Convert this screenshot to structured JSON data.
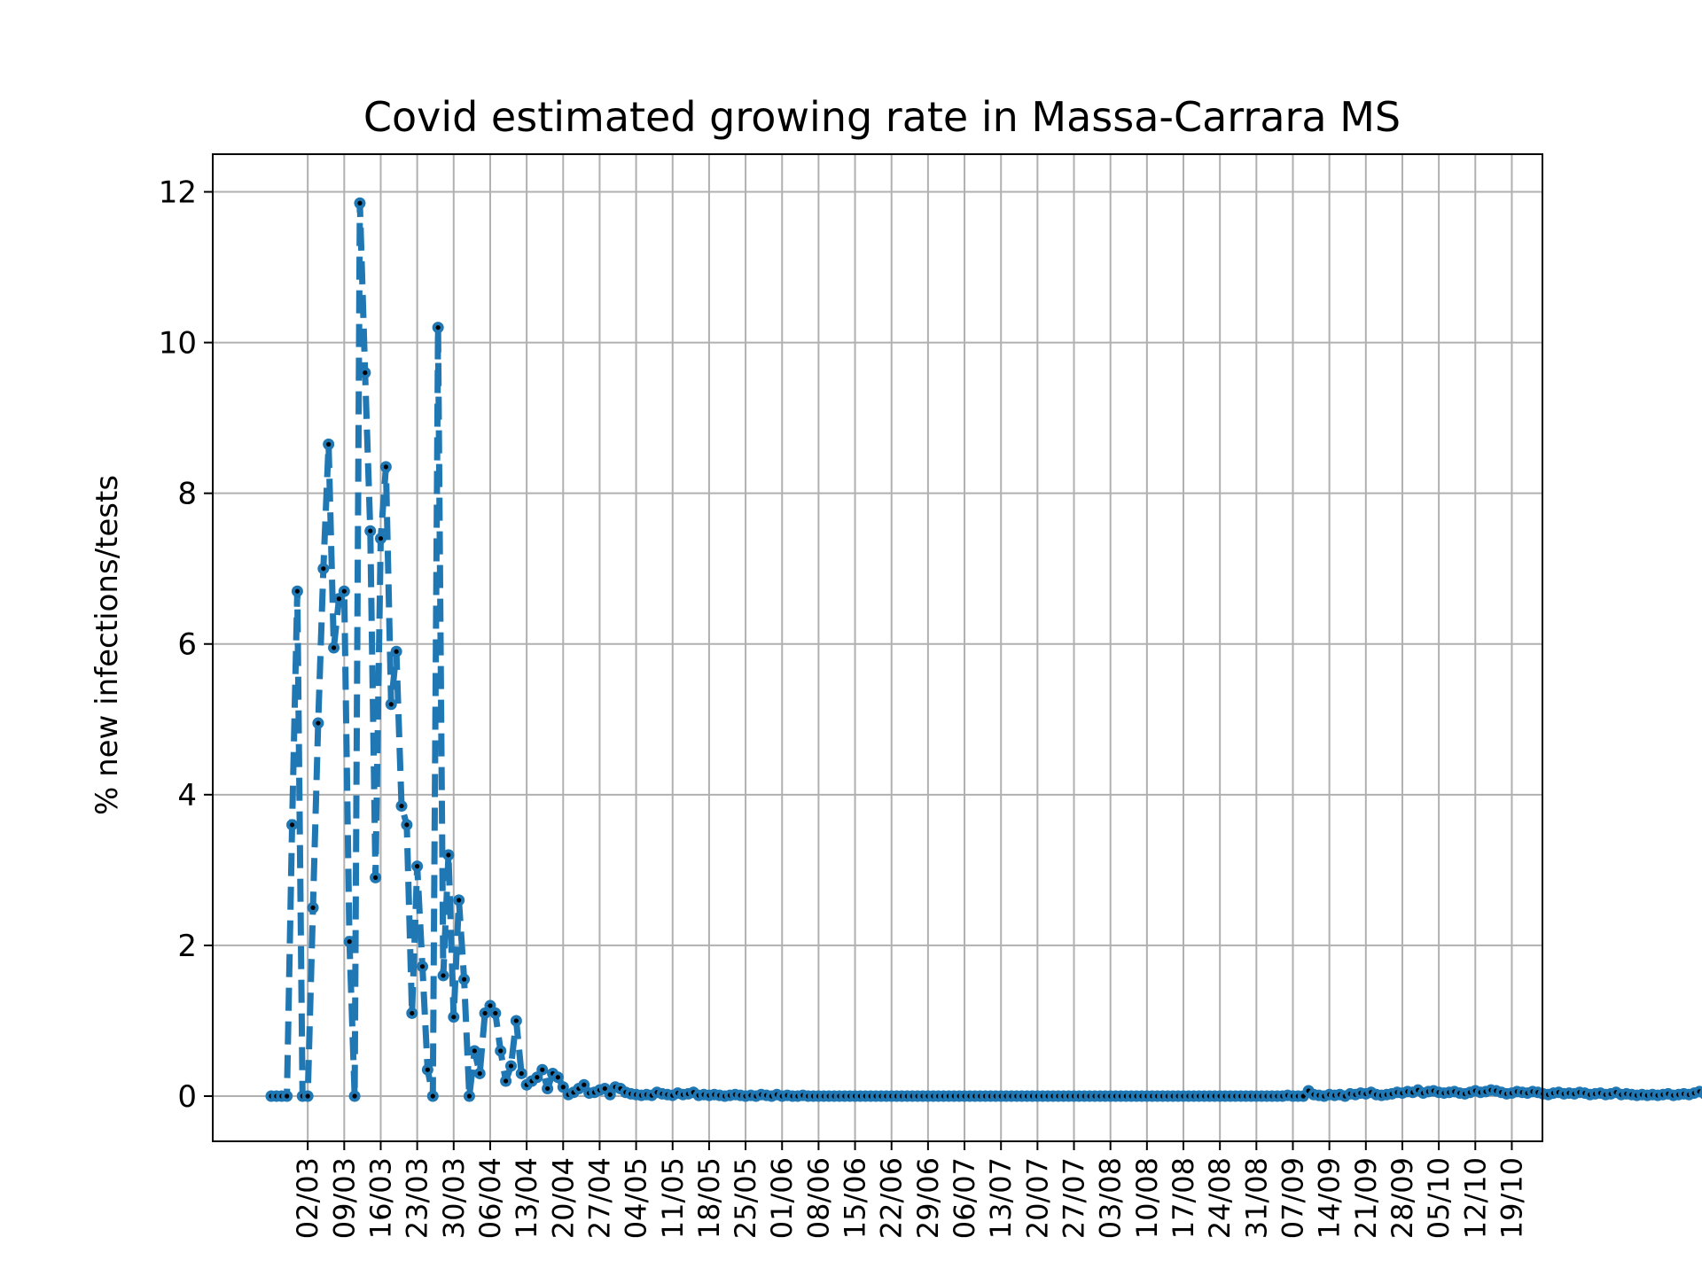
{
  "chart_data": {
    "type": "line",
    "title": "Covid estimated growing rate in Massa-Carrara MS",
    "xlabel": "",
    "ylabel": "% new infections/tests",
    "ylim": [
      -0.6,
      12.5
    ],
    "yticks": [
      0,
      2,
      4,
      6,
      8,
      10,
      12
    ],
    "grid": true,
    "line_color": "#1f77b4",
    "marker_color": "#000000",
    "x_start": "24/02",
    "x_end": "19/10",
    "xtick_labels": [
      "02/03",
      "09/03",
      "16/03",
      "23/03",
      "30/03",
      "06/04",
      "13/04",
      "20/04",
      "27/04",
      "04/05",
      "11/05",
      "18/05",
      "25/05",
      "01/06",
      "08/06",
      "15/06",
      "22/06",
      "29/06",
      "06/07",
      "13/07",
      "20/07",
      "27/07",
      "03/08",
      "10/08",
      "17/08",
      "24/08",
      "31/08",
      "07/09",
      "14/09",
      "21/09",
      "28/09",
      "05/10",
      "12/10",
      "19/10"
    ],
    "series": [
      {
        "values": [
          0,
          0,
          0,
          0,
          3.6,
          6.7,
          0,
          0,
          2.5,
          4.95,
          7.0,
          8.65,
          5.95,
          6.6,
          6.7,
          2.05,
          0,
          11.85,
          9.6,
          7.5,
          2.9,
          7.4,
          8.35,
          5.2,
          5.9,
          3.85,
          3.6,
          1.1,
          3.05,
          1.72,
          0.35,
          0,
          10.2,
          1.6,
          3.2,
          1.05,
          2.6,
          1.55,
          0,
          0.6,
          0.3,
          1.1,
          1.2,
          1.1,
          0.6,
          0.2,
          0.4,
          1.0,
          0.3,
          0.15,
          0.2,
          0.25,
          0.35,
          0.1,
          0.3,
          0.25,
          0.12,
          0.02,
          0.05,
          0.1,
          0.15,
          0.04,
          0.05,
          0.08,
          0.1,
          0.02,
          0.12,
          0.1,
          0.05,
          0.03,
          0.02,
          0.01,
          0.02,
          0.01,
          0.05,
          0.03,
          0.02,
          0.01,
          0.04,
          0.02,
          0.03,
          0.05,
          0.01,
          0.02,
          0.01,
          0.02,
          0.01,
          0.0,
          0.01,
          0.02,
          0.01,
          0.0,
          0.01,
          0.0,
          0.02,
          0.01,
          0.0,
          0.02,
          0.0,
          0.01,
          0.0,
          0.0,
          0.01,
          0.0,
          0.0,
          0.0,
          0.0,
          0.0,
          0.0,
          0.0,
          0.0,
          0.0,
          0.0,
          0.0,
          0.0,
          0.0,
          0.0,
          0.0,
          0.0,
          0.0,
          0.0,
          0.0,
          0.0,
          0.0,
          0.0,
          0.0,
          0.0,
          0.0,
          0.0,
          0.0,
          0.0,
          0.0,
          0.0,
          0.0,
          0.0,
          0.0,
          0.0,
          0.0,
          0.0,
          0.0,
          0.0,
          0.0,
          0.0,
          0.0,
          0.0,
          0.0,
          0.0,
          0.0,
          0.0,
          0.0,
          0.0,
          0.0,
          0.0,
          0.0,
          0.0,
          0.0,
          0.0,
          0.0,
          0.0,
          0.0,
          0.0,
          0.0,
          0.0,
          0.0,
          0.0,
          0.0,
          0.0,
          0.0,
          0.0,
          0.0,
          0.0,
          0.0,
          0.0,
          0.0,
          0.0,
          0.0,
          0.0,
          0.0,
          0.0,
          0.0,
          0.0,
          0.0,
          0.0,
          0.0,
          0.0,
          0.0,
          0.0,
          0.0,
          0.0,
          0.0,
          0.0,
          0.0,
          0.0,
          0.0,
          0.0,
          0.01,
          0.0,
          0.0,
          0.0,
          0.07,
          0.02,
          0.01,
          0.0,
          0.02,
          0.01,
          0.02,
          0.0,
          0.03,
          0.02,
          0.04,
          0.03,
          0.05,
          0.02,
          0.01,
          0.02,
          0.03,
          0.05,
          0.04,
          0.06,
          0.05,
          0.08,
          0.04,
          0.06,
          0.07,
          0.05,
          0.04,
          0.05,
          0.06,
          0.04,
          0.03,
          0.05,
          0.07,
          0.05,
          0.06,
          0.08,
          0.07,
          0.05,
          0.03,
          0.04,
          0.06,
          0.05,
          0.04,
          0.06,
          0.05,
          0.03,
          0.02,
          0.04,
          0.05,
          0.03,
          0.04,
          0.03,
          0.05,
          0.04,
          0.02,
          0.03,
          0.04,
          0.02,
          0.03,
          0.05,
          0.02,
          0.03,
          0.02,
          0.01,
          0.02,
          0.01,
          0.02,
          0.01,
          0.02,
          0.03,
          0.01,
          0.02,
          0.03,
          0.02,
          0.04,
          0.06,
          0.03,
          0.02,
          0.04,
          0.05,
          0.03,
          0.06,
          0.08,
          0.07,
          0.05,
          0.09,
          0.13
        ]
      }
    ]
  }
}
